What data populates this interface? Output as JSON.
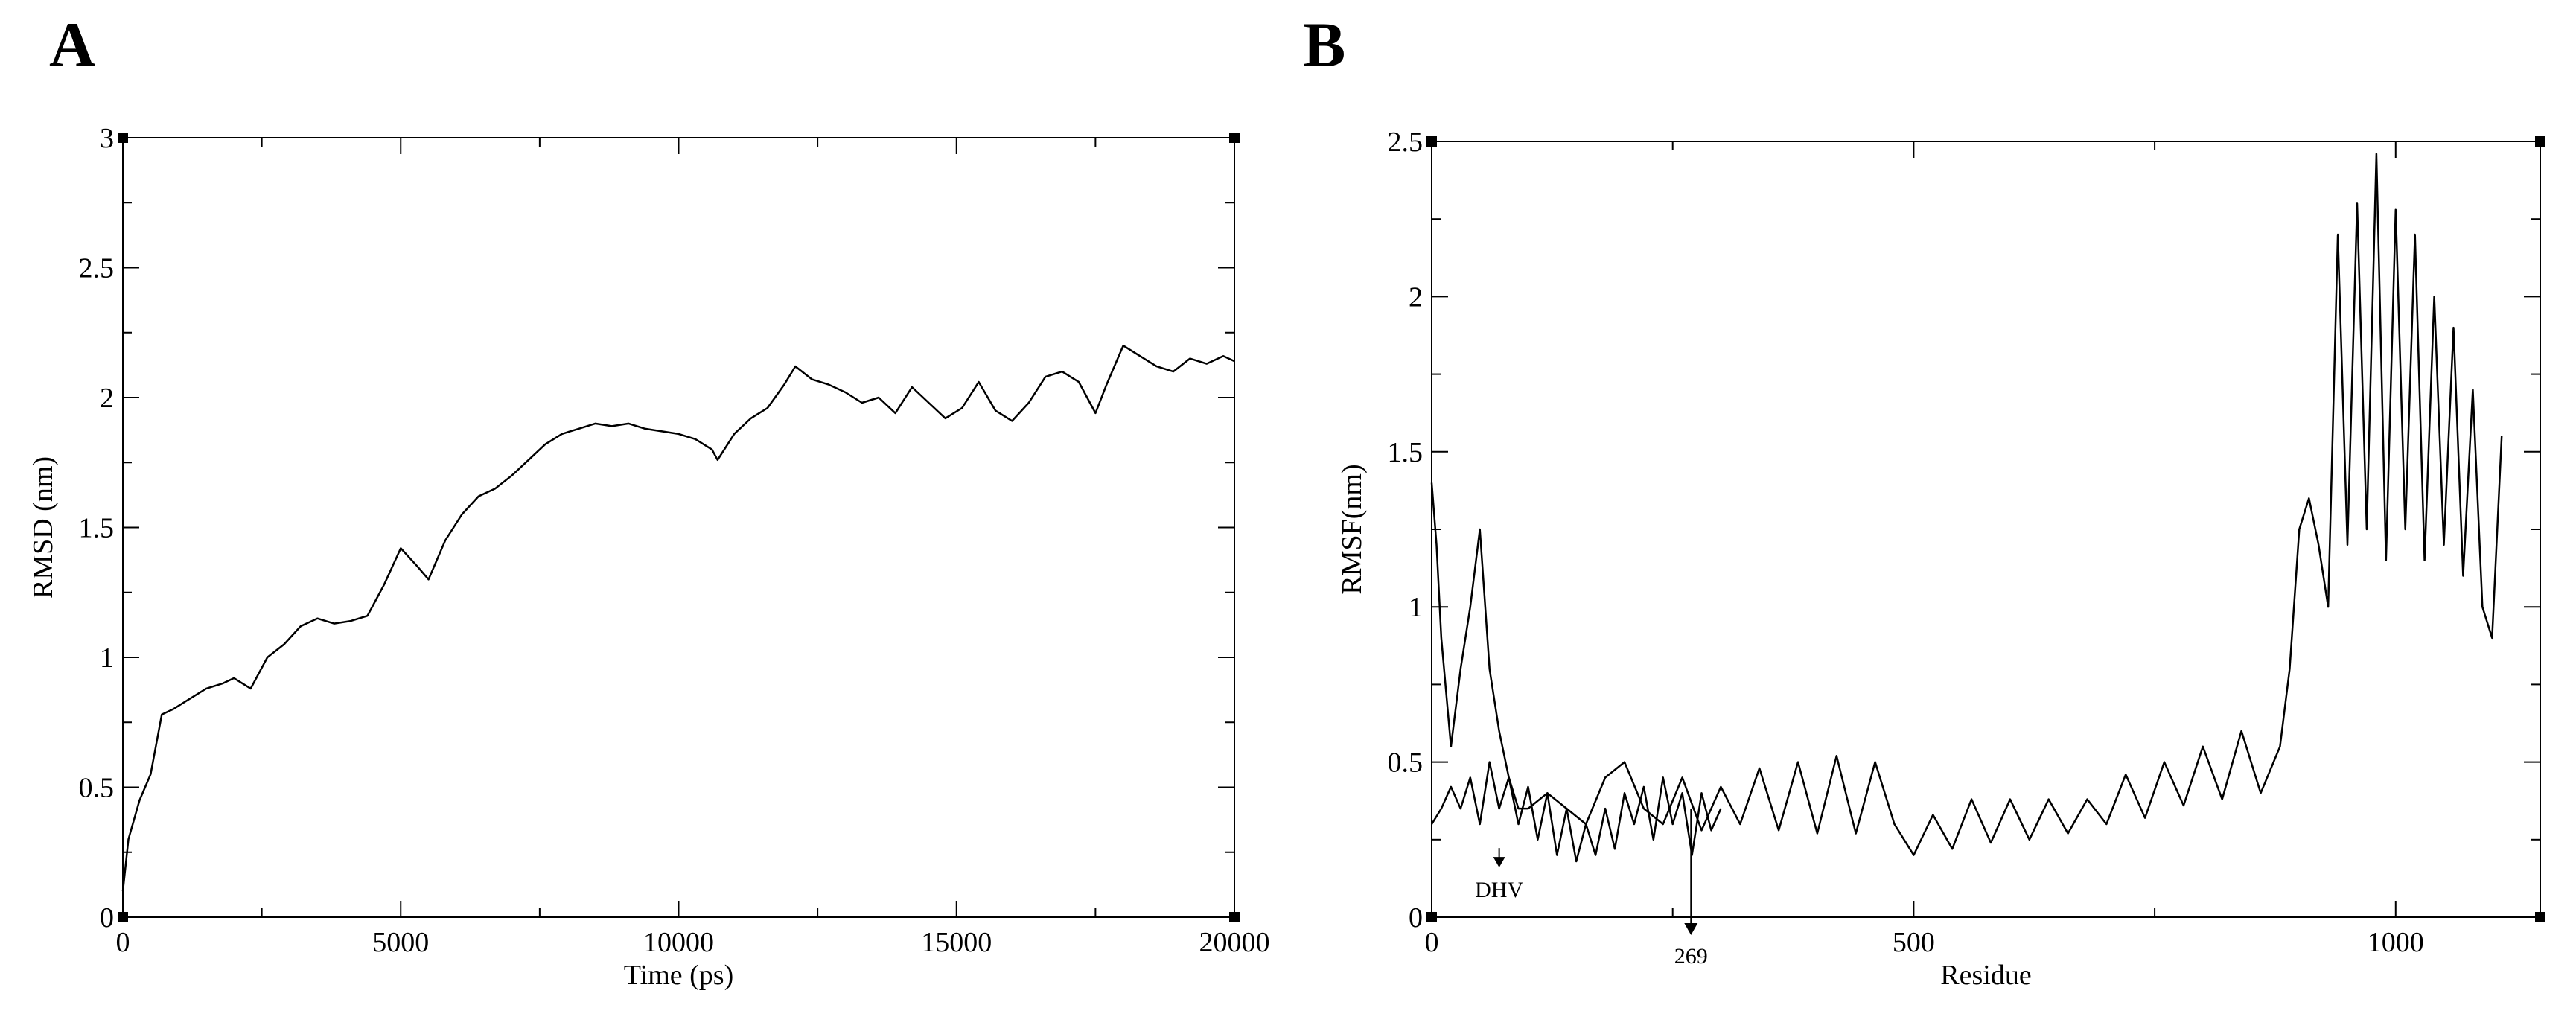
{
  "panels": {
    "a_label": "A",
    "b_label": "B"
  },
  "chart_data": [
    {
      "id": "A",
      "type": "line",
      "title": "",
      "xlabel": "Time (ps)",
      "ylabel": "RMSD (nm)",
      "xlim": [
        0,
        20000
      ],
      "ylim": [
        0,
        3
      ],
      "x_ticks": [
        0,
        5000,
        10000,
        15000,
        20000
      ],
      "y_ticks": [
        0,
        0.5,
        1,
        1.5,
        2,
        2.5,
        3
      ],
      "grid": false,
      "line_color": "#000000",
      "series": [
        {
          "x": [
            0,
            100,
            300,
            500,
            700,
            900,
            1200,
            1500,
            1800,
            2000,
            2300,
            2600,
            2900,
            3200,
            3500,
            3800,
            4100,
            4400,
            4700,
            5000,
            5300,
            5500,
            5800,
            6100,
            6400,
            6700,
            7000,
            7300,
            7600,
            7900,
            8200,
            8500,
            8800,
            9100,
            9400,
            9700,
            10000,
            10300,
            10600,
            10700,
            11000,
            11300,
            11600,
            11900,
            12100,
            12400,
            12700,
            13000,
            13300,
            13600,
            13900,
            14200,
            14500,
            14800,
            15100,
            15400,
            15700,
            16000,
            16300,
            16600,
            16900,
            17200,
            17500,
            17700,
            18000,
            18300,
            18600,
            18900,
            19200,
            19500,
            19800,
            20000
          ],
          "y": [
            0.1,
            0.3,
            0.45,
            0.55,
            0.78,
            0.8,
            0.84,
            0.88,
            0.9,
            0.92,
            0.88,
            1.0,
            1.05,
            1.12,
            1.15,
            1.13,
            1.14,
            1.16,
            1.28,
            1.42,
            1.35,
            1.3,
            1.45,
            1.55,
            1.62,
            1.65,
            1.7,
            1.76,
            1.82,
            1.86,
            1.88,
            1.9,
            1.89,
            1.9,
            1.88,
            1.87,
            1.86,
            1.84,
            1.8,
            1.76,
            1.86,
            1.92,
            1.96,
            2.05,
            2.12,
            2.07,
            2.05,
            2.02,
            1.98,
            2.0,
            1.94,
            2.04,
            1.98,
            1.92,
            1.96,
            2.06,
            1.95,
            1.91,
            1.98,
            2.08,
            2.1,
            2.06,
            1.94,
            2.05,
            2.2,
            2.16,
            2.12,
            2.1,
            2.15,
            2.13,
            2.16,
            2.14
          ]
        }
      ]
    },
    {
      "id": "B",
      "type": "line",
      "title": "",
      "xlabel": "Residue",
      "ylabel": "RMSF(nm)",
      "xlim": [
        0,
        1150
      ],
      "ylim": [
        0,
        2.5
      ],
      "x_ticks": [
        0,
        500,
        1000
      ],
      "y_ticks": [
        0,
        0.5,
        1,
        1.5,
        2,
        2.5
      ],
      "grid": false,
      "line_color": "#000000",
      "annotations": [
        {
          "text": "DHV",
          "x": 70,
          "y": 0.17
        },
        {
          "text": "269",
          "x": 269,
          "y": 0.0
        }
      ],
      "series": [
        {
          "x": [
            0,
            5,
            10,
            20,
            30,
            40,
            50,
            60,
            70,
            80,
            90,
            100,
            120,
            140,
            160,
            180,
            200,
            220,
            240,
            260,
            280,
            300,
            320,
            340,
            360,
            380,
            400,
            420,
            440,
            460,
            480,
            500,
            520,
            540,
            560,
            580,
            600,
            620,
            640,
            660,
            680,
            700,
            720,
            740,
            760,
            780,
            800,
            820,
            840,
            860,
            880,
            890,
            900,
            910,
            920,
            930,
            940,
            950,
            960,
            970,
            980,
            990,
            1000,
            1010,
            1020,
            1030,
            1040,
            1050,
            1060,
            1070,
            1080,
            1090,
            1100,
            1110
          ],
          "y": [
            1.4,
            1.2,
            0.9,
            0.55,
            0.8,
            1.0,
            1.25,
            0.8,
            0.6,
            0.45,
            0.35,
            0.35,
            0.4,
            0.35,
            0.3,
            0.45,
            0.5,
            0.35,
            0.3,
            0.45,
            0.28,
            0.42,
            0.3,
            0.48,
            0.28,
            0.5,
            0.27,
            0.52,
            0.27,
            0.5,
            0.3,
            0.2,
            0.33,
            0.22,
            0.38,
            0.24,
            0.38,
            0.25,
            0.38,
            0.27,
            0.38,
            0.3,
            0.46,
            0.32,
            0.5,
            0.36,
            0.55,
            0.38,
            0.6,
            0.4,
            0.55,
            0.8,
            1.25,
            1.35,
            1.2,
            1.0,
            2.2,
            1.2,
            2.3,
            1.25,
            2.46,
            1.15,
            2.28,
            1.25,
            2.2,
            1.15,
            2.0,
            1.2,
            1.9,
            1.1,
            1.7,
            1.0,
            0.9,
            1.55
          ]
        },
        {
          "x": [
            0,
            10,
            20,
            30,
            40,
            50,
            60,
            70,
            80,
            90,
            100,
            110,
            120,
            130,
            140,
            150,
            160,
            170,
            180,
            190,
            200,
            210,
            220,
            230,
            240,
            250,
            260,
            270,
            280,
            290,
            300
          ],
          "y": [
            0.3,
            0.35,
            0.42,
            0.35,
            0.45,
            0.3,
            0.5,
            0.35,
            0.45,
            0.3,
            0.42,
            0.25,
            0.4,
            0.2,
            0.35,
            0.18,
            0.3,
            0.2,
            0.35,
            0.22,
            0.4,
            0.3,
            0.42,
            0.25,
            0.45,
            0.3,
            0.4,
            0.2,
            0.4,
            0.28,
            0.35
          ]
        }
      ]
    }
  ]
}
